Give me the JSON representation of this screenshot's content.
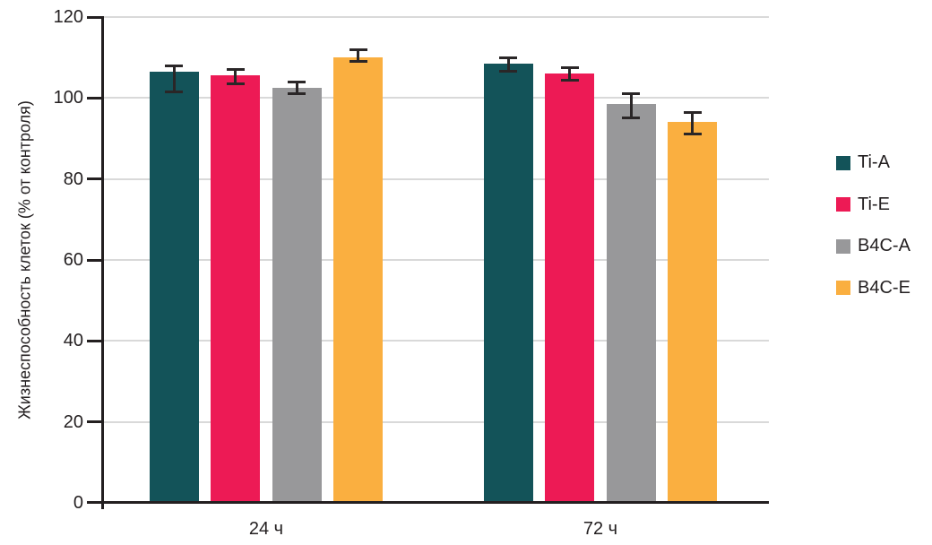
{
  "chart_data": {
    "type": "bar",
    "title": "",
    "ylabel": "Жизнеспособность клеток (% от контроля)",
    "xlabel": "",
    "categories": [
      "24 ч",
      "72 ч"
    ],
    "y_ticks": [
      0,
      20,
      40,
      60,
      80,
      100,
      120
    ],
    "ylim": [
      0,
      120
    ],
    "grid": true,
    "legend_position": "right",
    "series": [
      {
        "name": "Ti-A",
        "color": "#135359",
        "values": [
          106.5,
          108.5
        ],
        "error_low": [
          101.5,
          106.5
        ],
        "error_high": [
          108,
          110
        ]
      },
      {
        "name": "Ti-E",
        "color": "#ED1A55",
        "values": [
          105.5,
          106
        ],
        "error_low": [
          103.5,
          104.5
        ],
        "error_high": [
          107,
          107.5
        ]
      },
      {
        "name": "B4C-A",
        "color": "#98989A",
        "values": [
          102.5,
          98.5
        ],
        "error_low": [
          101,
          95
        ],
        "error_high": [
          104,
          101
        ]
      },
      {
        "name": "B4C-E",
        "color": "#FAAF40",
        "values": [
          110,
          94
        ],
        "error_low": [
          109,
          91
        ],
        "error_high": [
          112,
          96.5
        ]
      }
    ],
    "colors": {
      "axis": "#231F20",
      "grid": "#D9D9D9",
      "error_bar": "#2A2627",
      "background": "#FFFFFF"
    }
  }
}
